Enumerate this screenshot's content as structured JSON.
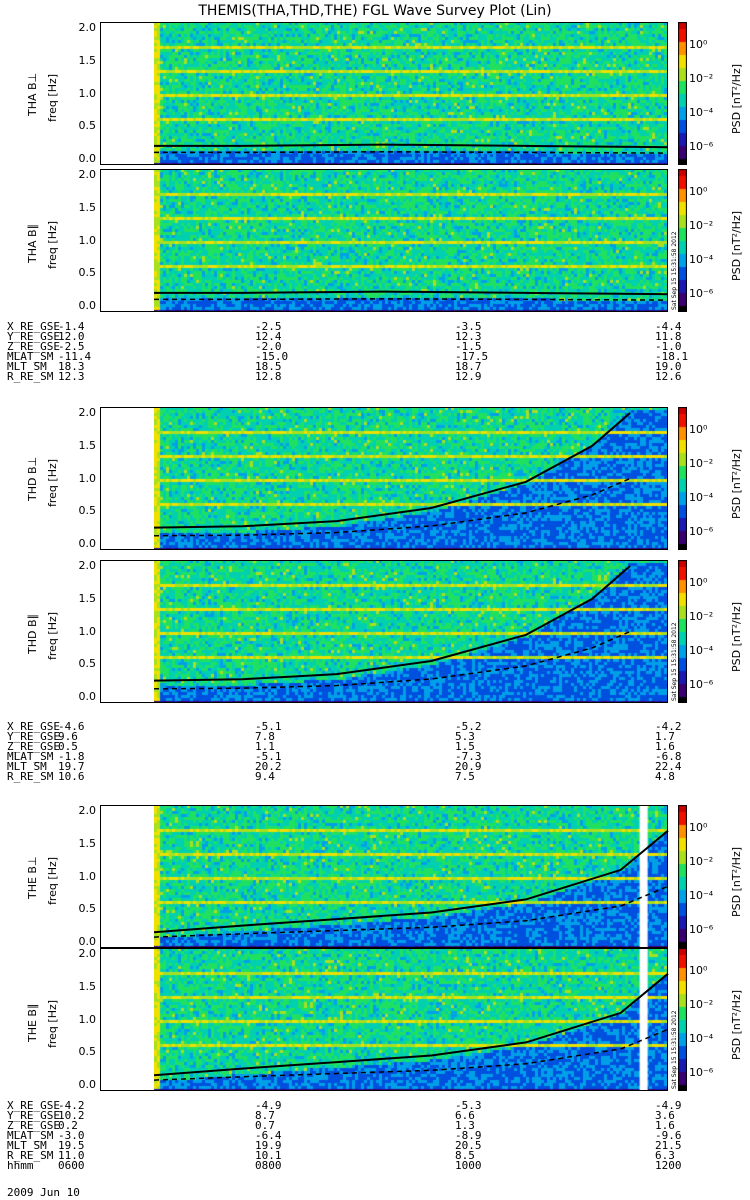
{
  "title": "THEMIS(THA,THD,THE) FGL Wave Survey Plot (Lin)",
  "colors": {
    "palette": [
      "#000000",
      "#3a0070",
      "#1a1ab0",
      "#0050e0",
      "#00a0e8",
      "#00d0b0",
      "#20e060",
      "#a8e020",
      "#f0e000",
      "#ff9000",
      "#f01000",
      "#c80000"
    ]
  },
  "y_tick_labels": [
    "0.0",
    "0.5",
    "1.0",
    "1.5",
    "2.0"
  ],
  "colorbar": {
    "label": "PSD [nT²/Hz]",
    "ticks": [
      "10⁰",
      "10⁻²",
      "10⁻⁴",
      "10⁻⁶"
    ]
  },
  "stamp_text": "Sat Sep 15 15:31:58 2012",
  "panels": [
    {
      "probe": "THA",
      "component": "THA B⊥",
      "freq_label": "freq [Hz]",
      "data_start_hour": 6.57,
      "solid_curve": "flat",
      "gap_hour": null
    },
    {
      "probe": "THA",
      "component": "THA B∥",
      "freq_label": "freq [Hz]",
      "data_start_hour": 6.57,
      "solid_curve": "flat",
      "gap_hour": null
    },
    {
      "probe": "THD",
      "component": "THD B⊥",
      "freq_label": "freq [Hz]",
      "data_start_hour": 6.57,
      "solid_curve": "rising",
      "gap_hour": null
    },
    {
      "probe": "THD",
      "component": "THD B∥",
      "freq_label": "freq [Hz]",
      "data_start_hour": 6.57,
      "solid_curve": "rising",
      "gap_hour": null
    },
    {
      "probe": "THE",
      "component": "THE B⊥",
      "freq_label": "freq [Hz]",
      "data_start_hour": 6.57,
      "solid_curve": "moderate",
      "gap_hour": 11.7
    },
    {
      "probe": "THE",
      "component": "THE B∥",
      "freq_label": "freq [Hz]",
      "data_start_hour": 6.57,
      "solid_curve": "moderate",
      "gap_hour": 11.7
    }
  ],
  "ephemeris": [
    {
      "rows": [
        {
          "name": "X_RE_GSE",
          "values": [
            "-1.4",
            "-2.5",
            "-3.5",
            "-4.4"
          ]
        },
        {
          "name": "Y_RE_GSE",
          "values": [
            "12.0",
            "12.4",
            "12.3",
            "11.8"
          ]
        },
        {
          "name": "Z_RE_GSE",
          "values": [
            "-2.5",
            "-2.0",
            "-1.5",
            "-1.0"
          ]
        },
        {
          "name": "MLAT_SM",
          "values": [
            "-11.4",
            "-15.0",
            "-17.5",
            "-18.1"
          ]
        },
        {
          "name": "MLT_SM",
          "values": [
            "18.3",
            "18.5",
            "18.7",
            "19.0"
          ]
        },
        {
          "name": "R_RE_SM",
          "values": [
            "12.3",
            "12.8",
            "12.9",
            "12.6"
          ]
        }
      ]
    },
    {
      "rows": [
        {
          "name": "X_RE_GSE",
          "values": [
            "-4.6",
            "-5.1",
            "-5.2",
            "-4.2"
          ]
        },
        {
          "name": "Y_RE_GSE",
          "values": [
            "9.6",
            "7.8",
            "5.3",
            "1.7"
          ]
        },
        {
          "name": "Z_RE_GSE",
          "values": [
            "0.5",
            "1.1",
            "1.5",
            "1.6"
          ]
        },
        {
          "name": "MLAT_SM",
          "values": [
            "-1.8",
            "-5.1",
            "-7.3",
            "-6.8"
          ]
        },
        {
          "name": "MLT_SM",
          "values": [
            "19.7",
            "20.2",
            "20.9",
            "22.4"
          ]
        },
        {
          "name": "R_RE_SM",
          "values": [
            "10.6",
            "9.4",
            "7.5",
            "4.8"
          ]
        }
      ]
    },
    {
      "rows": [
        {
          "name": "X_RE_GSE",
          "values": [
            "-4.2",
            "-4.9",
            "-5.3",
            "-4.9"
          ]
        },
        {
          "name": "Y_RE_GSE",
          "values": [
            "10.2",
            "8.7",
            "6.6",
            "3.6"
          ]
        },
        {
          "name": "Z_RE_GSE",
          "values": [
            "0.2",
            "0.7",
            "1.3",
            "1.6"
          ]
        },
        {
          "name": "MLAT_SM",
          "values": [
            "-3.0",
            "-6.4",
            "-8.9",
            "-9.6"
          ]
        },
        {
          "name": "MLT_SM",
          "values": [
            "19.5",
            "19.9",
            "20.5",
            "21.5"
          ]
        },
        {
          "name": "R_RE_SM",
          "values": [
            "11.0",
            "10.1",
            "8.5",
            "6.3"
          ]
        },
        {
          "name": "hhmm",
          "values": [
            "0600",
            "0800",
            "1000",
            "1200"
          ]
        }
      ]
    }
  ],
  "date_label": "2009 Jun 10",
  "chart_data": {
    "type": "heatmap",
    "title": "THEMIS(THA,THD,THE) FGL Wave Survey Plot (Lin)",
    "xlabel": "hhmm",
    "x_ticks": [
      "0600",
      "0800",
      "1000",
      "1200"
    ],
    "xlim_hours": [
      6.0,
      12.0
    ],
    "ylabel": "freq [Hz]",
    "ylim": [
      0.0,
      2.0
    ],
    "zlabel": "PSD [nT²/Hz]",
    "zscale": "log",
    "zlim": [
      1e-06,
      10.0
    ],
    "series": [
      {
        "name": "THA B⊥",
        "solid_line_freq_hz": {
          "x_hours": [
            6.57,
            7.5,
            9.0,
            10.5,
            12.0
          ],
          "y": [
            0.2,
            0.2,
            0.22,
            0.2,
            0.18
          ]
        }
      },
      {
        "name": "THA B∥",
        "solid_line_freq_hz": {
          "x_hours": [
            6.57,
            7.5,
            9.0,
            10.5,
            12.0
          ],
          "y": [
            0.2,
            0.2,
            0.22,
            0.2,
            0.18
          ]
        }
      },
      {
        "name": "THD B⊥",
        "solid_line_freq_hz": {
          "x_hours": [
            6.57,
            7.5,
            8.5,
            9.5,
            10.5,
            11.2,
            11.6
          ],
          "y": [
            0.25,
            0.27,
            0.35,
            0.55,
            0.95,
            1.5,
            2.0
          ]
        }
      },
      {
        "name": "THD B∥",
        "solid_line_freq_hz": {
          "x_hours": [
            6.57,
            7.5,
            8.5,
            9.5,
            10.5,
            11.2,
            11.6
          ],
          "y": [
            0.25,
            0.27,
            0.35,
            0.55,
            0.95,
            1.5,
            2.0
          ]
        }
      },
      {
        "name": "THE B⊥",
        "solid_line_freq_hz": {
          "x_hours": [
            6.57,
            7.5,
            8.5,
            9.5,
            10.5,
            11.5,
            12.0
          ],
          "y": [
            0.15,
            0.25,
            0.35,
            0.45,
            0.65,
            1.1,
            1.7
          ]
        }
      },
      {
        "name": "THE B∥",
        "solid_line_freq_hz": {
          "x_hours": [
            6.57,
            7.5,
            8.5,
            9.5,
            10.5,
            11.5,
            12.0
          ],
          "y": [
            0.15,
            0.25,
            0.35,
            0.45,
            0.65,
            1.1,
            1.7
          ]
        }
      }
    ]
  }
}
